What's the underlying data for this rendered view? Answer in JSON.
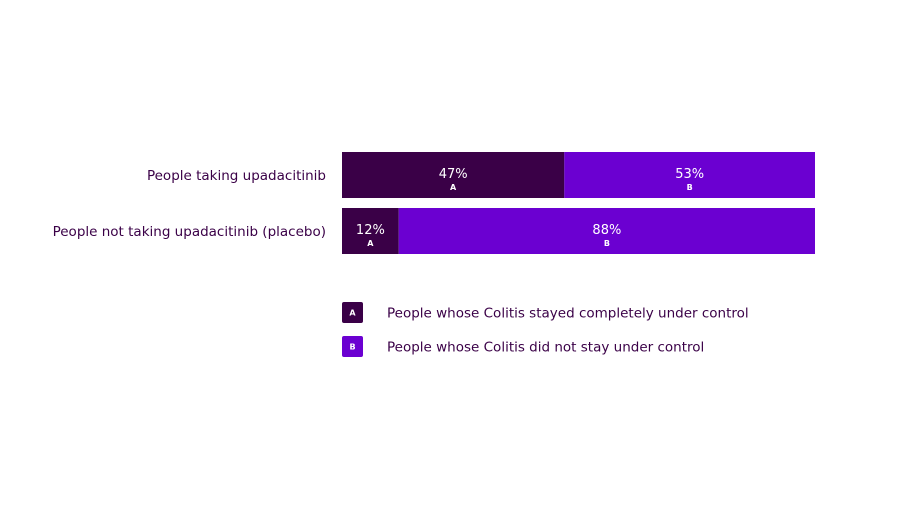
{
  "chart_data": {
    "type": "bar",
    "orientation": "horizontal",
    "stacked": true,
    "normalized": true,
    "categories": [
      "People taking upadacitinib",
      "People not taking upadacitinib (placebo)"
    ],
    "series": [
      {
        "key": "A",
        "name": "People whose Colitis stayed completely under control",
        "values": [
          47,
          12
        ],
        "labels": [
          "47%",
          "12%"
        ],
        "color": "#3a0047"
      },
      {
        "key": "B",
        "name": "People whose Colitis did not stay under control",
        "values": [
          53,
          88
        ],
        "labels": [
          "53%",
          "88%"
        ],
        "color": "#6b00d1"
      }
    ],
    "xlim": [
      0,
      100
    ],
    "grid": false,
    "legend_position": "bottom",
    "title": "",
    "xlabel": "",
    "ylabel": ""
  },
  "colors": {
    "text": "#3a0047",
    "segment_label": "#ffffff"
  }
}
